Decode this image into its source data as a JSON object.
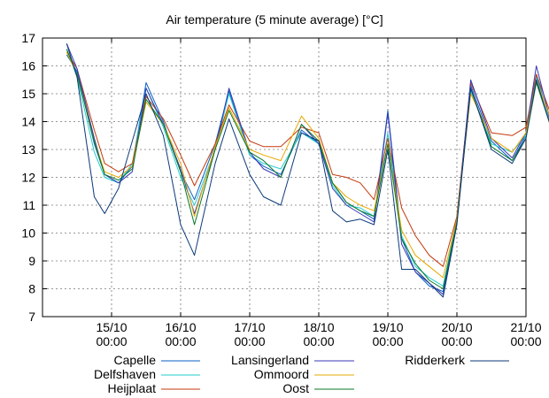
{
  "chart_data": {
    "type": "line",
    "title": "Air temperature (5 minute average) [°C]",
    "xlabel": "",
    "ylabel": "",
    "ylim": [
      7,
      17
    ],
    "xlim_days": [
      0,
      7
    ],
    "yticks": [
      7,
      8,
      9,
      10,
      11,
      12,
      13,
      14,
      15,
      16,
      17
    ],
    "xticks": [
      {
        "day": 1,
        "label_date": "15/10",
        "label_time": "00:00"
      },
      {
        "day": 2,
        "label_date": "16/10",
        "label_time": "00:00"
      },
      {
        "day": 3,
        "label_date": "17/10",
        "label_time": "00:00"
      },
      {
        "day": 4,
        "label_date": "18/10",
        "label_time": "00:00"
      },
      {
        "day": 5,
        "label_date": "19/10",
        "label_time": "00:00"
      },
      {
        "day": 6,
        "label_date": "20/10",
        "label_time": "00:00"
      },
      {
        "day": 7,
        "label_date": "21/10",
        "label_time": "00:00"
      }
    ],
    "x": [
      0.35,
      0.5,
      0.75,
      0.9,
      1.1,
      1.3,
      1.5,
      1.75,
      2.0,
      2.2,
      2.5,
      2.7,
      3.0,
      3.2,
      3.45,
      3.75,
      4.0,
      4.2,
      4.4,
      4.6,
      4.8,
      5.0,
      5.2,
      5.4,
      5.6,
      5.8,
      6.0,
      6.2,
      6.5,
      6.8,
      7.0,
      7.15,
      7.4
    ],
    "series": [
      {
        "name": "Capelle",
        "color": "#0a5fc4",
        "values": [
          16.4,
          15.8,
          13.2,
          12.1,
          11.8,
          12.4,
          15.4,
          14.0,
          12.2,
          11.2,
          13.2,
          15.1,
          12.8,
          12.4,
          12.1,
          13.7,
          13.2,
          11.8,
          11.1,
          10.8,
          10.5,
          14.4,
          9.8,
          8.6,
          8.1,
          7.9,
          10.6,
          15.3,
          13.3,
          12.6,
          13.5,
          15.7,
          13.6
        ]
      },
      {
        "name": "Delfshaven",
        "color": "#22cccc",
        "values": [
          16.6,
          15.6,
          12.9,
          12.0,
          11.8,
          12.5,
          15.2,
          13.8,
          12.0,
          11.0,
          13.0,
          15.0,
          12.8,
          12.5,
          12.3,
          13.6,
          13.2,
          11.7,
          11.0,
          10.9,
          10.6,
          13.6,
          9.9,
          8.8,
          8.4,
          8.1,
          10.5,
          15.1,
          13.2,
          12.9,
          13.5,
          15.6,
          13.7
        ]
      },
      {
        "name": "Heijplaat",
        "color": "#c43a0e",
        "values": [
          16.5,
          15.9,
          13.7,
          12.5,
          12.2,
          12.5,
          14.9,
          14.1,
          12.8,
          11.7,
          13.2,
          14.6,
          13.3,
          13.1,
          13.1,
          13.8,
          13.6,
          12.1,
          12.0,
          11.8,
          11.2,
          13.4,
          10.9,
          9.9,
          9.2,
          8.8,
          10.6,
          15.4,
          13.6,
          13.5,
          13.8,
          15.7,
          14.0
        ]
      },
      {
        "name": "Lansingerland",
        "color": "#3a3ab4",
        "values": [
          16.8,
          15.9,
          13.4,
          12.1,
          11.8,
          12.2,
          15.2,
          13.9,
          12.3,
          10.7,
          13.0,
          15.2,
          12.9,
          12.3,
          12.0,
          13.9,
          13.2,
          11.6,
          11.0,
          10.7,
          10.4,
          14.3,
          9.6,
          8.6,
          8.2,
          7.8,
          10.4,
          15.5,
          13.4,
          12.7,
          13.6,
          16.0,
          13.6
        ]
      },
      {
        "name": "Ommoord",
        "color": "#e6a800",
        "values": [
          16.5,
          15.7,
          13.3,
          12.2,
          12.0,
          12.4,
          14.7,
          13.9,
          12.5,
          10.6,
          13.1,
          14.5,
          13.0,
          12.8,
          12.6,
          14.2,
          13.4,
          11.8,
          11.3,
          11.0,
          10.8,
          13.2,
          10.1,
          9.2,
          8.8,
          8.4,
          10.5,
          15.0,
          13.4,
          12.9,
          13.6,
          15.5,
          13.8
        ]
      },
      {
        "name": "Oost",
        "color": "#0a7a2a",
        "values": [
          16.6,
          15.7,
          13.3,
          12.1,
          11.9,
          12.3,
          14.8,
          13.9,
          12.2,
          10.3,
          13.0,
          14.4,
          12.9,
          12.6,
          12.0,
          13.9,
          13.3,
          11.8,
          11.1,
          10.8,
          10.6,
          13.2,
          9.8,
          8.9,
          8.3,
          8.0,
          10.4,
          15.2,
          13.1,
          12.6,
          13.4,
          15.4,
          13.5
        ]
      },
      {
        "name": "Ridderkerk",
        "color": "#0b3a7a",
        "values": [
          16.8,
          15.6,
          11.3,
          10.7,
          11.6,
          13.3,
          15.0,
          13.5,
          10.3,
          9.2,
          12.5,
          14.1,
          12.1,
          11.3,
          11.0,
          13.6,
          13.3,
          10.8,
          10.4,
          10.5,
          10.3,
          13.0,
          8.7,
          8.7,
          8.2,
          7.7,
          10.3,
          15.2,
          13.0,
          12.5,
          13.4,
          15.5,
          13.5
        ]
      }
    ],
    "legend_position": "bottom"
  }
}
